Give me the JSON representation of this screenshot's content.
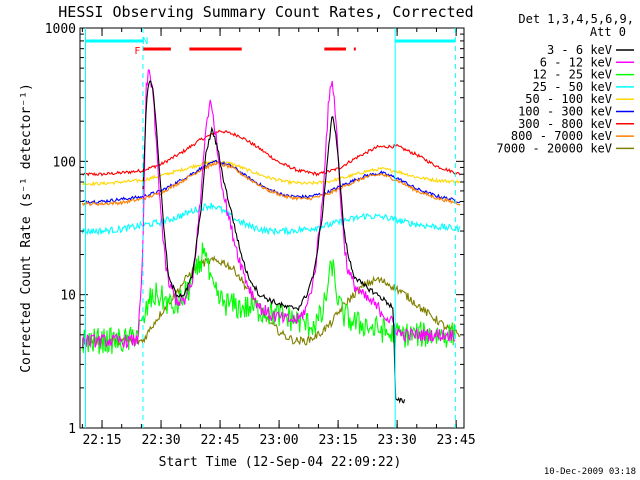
{
  "chart_data": {
    "type": "line",
    "title": "HESSI Observing Summary Count Rates, Corrected",
    "xlabel": "Start Time (12-Sep-04 22:09:22)",
    "ylabel": "Corrected Count Rate (s⁻¹ detector⁻¹)",
    "x_unit": "minutes after 22:00",
    "xlim": [
      9.4,
      107
    ],
    "ylim": [
      1,
      1000
    ],
    "yscale": "log",
    "x_ticks": [
      {
        "v": 15,
        "label": "22:15"
      },
      {
        "v": 30,
        "label": "22:30"
      },
      {
        "v": 45,
        "label": "22:45"
      },
      {
        "v": 60,
        "label": "23:00"
      },
      {
        "v": 75,
        "label": "23:15"
      },
      {
        "v": 90,
        "label": "23:30"
      },
      {
        "v": 105,
        "label": "23:45"
      }
    ],
    "y_ticks": [
      {
        "v": 1,
        "label": "1"
      },
      {
        "v": 10,
        "label": "10"
      },
      {
        "v": 100,
        "label": "100"
      },
      {
        "v": 1000,
        "label": "1000"
      }
    ],
    "legend_header": [
      "Det 1,3,4,5,6,9,",
      "Att 0"
    ],
    "legend_position": "right",
    "footer_date": "10-Dec-2009 03:18",
    "orbit_markers": [
      {
        "x": 24,
        "label": "F",
        "color": "#ff0000"
      },
      {
        "x": 26,
        "label": "N",
        "color": "#00ffff"
      }
    ],
    "day_night_lines": [
      {
        "x": 10.8,
        "style": "solid"
      },
      {
        "x": 25.4,
        "style": "dashed"
      },
      {
        "x": 89.5,
        "style": "solid"
      },
      {
        "x": 104.8,
        "style": "dashed"
      }
    ],
    "saa_segments": [
      {
        "x0": 10.8,
        "x1": 25.4
      },
      {
        "x0": 89.5,
        "x1": 104.8
      }
    ],
    "flare_segments": [
      {
        "x0": 25.5,
        "x1": 32.5
      },
      {
        "x0": 37.2,
        "x1": 50.5
      },
      {
        "x0": 71.5,
        "x1": 77.0
      },
      {
        "x0": 79.0,
        "x1": 79.5
      }
    ],
    "series": [
      {
        "name": "3 - 6 keV",
        "color": "#000000",
        "x": [
          25.4,
          26.2,
          27.0,
          28.0,
          29.0,
          30.0,
          31.0,
          32.0,
          34.0,
          36.0,
          38.0,
          40.0,
          41.5,
          43.0,
          44.5,
          46.0,
          48.0,
          50.0,
          52.0,
          55.0,
          58.0,
          62.0,
          65.0,
          67.0,
          69.0,
          71.0,
          72.5,
          73.5,
          74.5,
          75.5,
          76.5,
          77.5,
          79.0,
          81.0,
          83.0,
          85.0,
          87.0,
          89.0,
          89.6,
          90.5,
          92.0
        ],
        "y": [
          60,
          250,
          420,
          350,
          150,
          60,
          25,
          13,
          10,
          10,
          14,
          40,
          120,
          175,
          120,
          70,
          40,
          22,
          14,
          10,
          9,
          8,
          8,
          10,
          15,
          40,
          120,
          220,
          160,
          70,
          30,
          20,
          14,
          12,
          11,
          10,
          9,
          8,
          1.6,
          1.6,
          1.6
        ]
      },
      {
        "name": "6 - 12 keV",
        "color": "#ff00ff",
        "x": [
          10,
          12,
          14,
          16,
          18,
          20,
          22,
          24,
          25.4,
          26.2,
          27.0,
          28.0,
          29.0,
          30.0,
          31.0,
          32.0,
          34.0,
          36.0,
          38.0,
          40.0,
          41.5,
          42.5,
          43.5,
          44.5,
          46.0,
          48.0,
          50.0,
          52.0,
          55.0,
          58.0,
          62.0,
          65.0,
          67.0,
          69.0,
          71.0,
          72.5,
          73.5,
          74.5,
          75.5,
          76.5,
          77.5,
          79.0,
          81.0,
          83.0,
          85.0,
          87.0,
          89.0,
          91.0,
          93.0,
          96.0,
          99.0,
          102.0,
          104.8
        ],
        "y": [
          4.5,
          4.5,
          4.5,
          4.5,
          4.5,
          4.5,
          4.5,
          4.5,
          20,
          350,
          480,
          300,
          110,
          40,
          18,
          12,
          9,
          9,
          12,
          50,
          200,
          270,
          200,
          110,
          55,
          30,
          18,
          12,
          8,
          7,
          6.5,
          6.5,
          8,
          14,
          50,
          250,
          430,
          200,
          60,
          25,
          15,
          12,
          10,
          9,
          8,
          7,
          6,
          5,
          5,
          5,
          5,
          5,
          5
        ]
      },
      {
        "name": "12 - 25 keV",
        "color": "#00ff00",
        "x": [
          10,
          14,
          18,
          22,
          25.4,
          27,
          29,
          31,
          33,
          35,
          37,
          38.5,
          40,
          41,
          42,
          43,
          44,
          45,
          47,
          50,
          53,
          56,
          60,
          64,
          67,
          69,
          71,
          72.5,
          73.5,
          74.5,
          75.5,
          76.5,
          78,
          80,
          82,
          84,
          86,
          88,
          89.5,
          92,
          96,
          100,
          104.8
        ],
        "y": [
          4.5,
          4.5,
          4.5,
          4.5,
          6,
          9,
          10,
          9,
          8,
          9,
          11,
          14,
          17,
          25,
          15,
          11,
          10,
          9,
          8.5,
          8,
          8,
          7.5,
          7,
          6.5,
          6,
          6,
          7,
          12,
          17,
          11,
          8,
          7,
          6.5,
          6,
          6,
          5.5,
          5.5,
          5,
          5,
          5,
          5,
          5,
          5
        ]
      },
      {
        "name": "25 - 50 keV",
        "color": "#00ffff",
        "x": [
          10,
          15,
          20,
          25,
          30,
          35,
          40,
          43,
          45,
          48,
          52,
          57,
          62,
          67,
          72,
          77,
          82,
          87,
          92,
          97,
          102,
          106
        ],
        "y": [
          30,
          30,
          31,
          33,
          35,
          39,
          45,
          47,
          44,
          38,
          33,
          30,
          30,
          31,
          33,
          36,
          39,
          38,
          35,
          33,
          32,
          31
        ]
      },
      {
        "name": "50 - 100 keV",
        "color": "#ffd700",
        "x": [
          10,
          15,
          20,
          25,
          30,
          35,
          40,
          44,
          48,
          52,
          57,
          62,
          67,
          72,
          77,
          82,
          86,
          90,
          95,
          100,
          106
        ],
        "y": [
          68,
          68,
          70,
          72,
          78,
          86,
          95,
          100,
          96,
          86,
          76,
          70,
          68,
          70,
          76,
          84,
          88,
          84,
          76,
          72,
          70
        ]
      },
      {
        "name": "100 - 300 keV",
        "color": "#0000ff",
        "x": [
          10,
          15,
          20,
          25,
          30,
          35,
          40,
          44,
          48,
          52,
          57,
          62,
          67,
          72,
          77,
          82,
          86,
          90,
          95,
          100,
          106
        ],
        "y": [
          50,
          50,
          52,
          54,
          60,
          72,
          88,
          100,
          92,
          76,
          62,
          55,
          54,
          58,
          68,
          78,
          82,
          75,
          62,
          55,
          50
        ]
      },
      {
        "name": "300 - 800 keV",
        "color": "#ff0000",
        "x": [
          10,
          15,
          20,
          25,
          30,
          35,
          40,
          45,
          50,
          55,
          60,
          65,
          70,
          75,
          80,
          85,
          90,
          95,
          100,
          106
        ],
        "y": [
          80,
          80,
          82,
          85,
          95,
          115,
          145,
          170,
          155,
          125,
          98,
          85,
          80,
          88,
          108,
          128,
          130,
          112,
          92,
          80
        ]
      },
      {
        "name": "800 - 7000 keV",
        "color": "#ff8000",
        "x": [
          10,
          15,
          20,
          25,
          30,
          35,
          40,
          44,
          48,
          52,
          57,
          62,
          67,
          72,
          77,
          82,
          86,
          90,
          95,
          100,
          106
        ],
        "y": [
          48,
          48,
          49,
          52,
          58,
          70,
          86,
          97,
          90,
          75,
          61,
          54,
          52,
          56,
          66,
          76,
          80,
          72,
          60,
          53,
          48
        ]
      },
      {
        "name": "7000 - 20000 keV",
        "color": "#808000",
        "x": [
          10,
          15,
          20,
          25.4,
          28,
          31,
          34,
          37,
          40,
          43,
          46,
          49,
          52,
          55,
          58,
          61,
          64,
          67,
          70,
          73,
          76,
          79,
          82,
          85,
          88,
          91,
          94,
          97,
          100,
          103,
          106
        ],
        "y": [
          4.5,
          4.5,
          4.5,
          4.5,
          6,
          8,
          10.5,
          14,
          17,
          18,
          17.5,
          15,
          11,
          8,
          6,
          5,
          4.5,
          4.5,
          5,
          6,
          8,
          10,
          12,
          13,
          12,
          10.5,
          9,
          7.5,
          6.5,
          5.5,
          5
        ]
      }
    ]
  }
}
